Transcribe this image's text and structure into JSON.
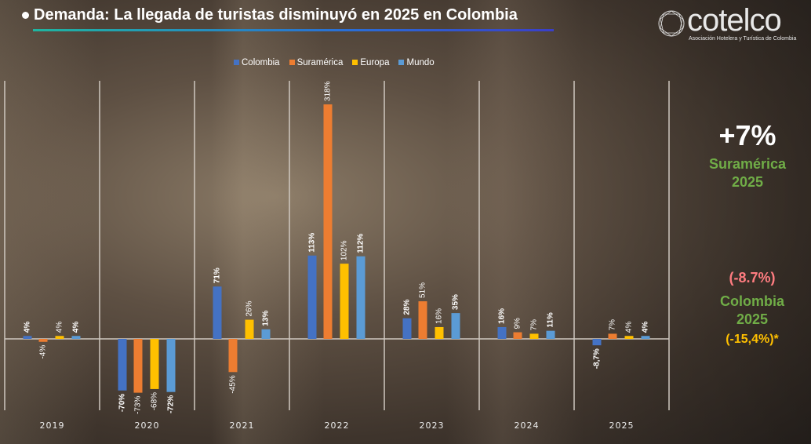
{
  "title": "Demanda: La llegada de turistas disminuyó en 2025 en Colombia",
  "logo": {
    "name": "cotelco",
    "tagline": "Asociación Hotelera y Turística de Colombia"
  },
  "chart_data": {
    "type": "bar",
    "categories": [
      "2019",
      "2020",
      "2021",
      "2022",
      "2023",
      "2024",
      "2025"
    ],
    "series": [
      {
        "name": "Colombia",
        "color": "#4472C4",
        "values": [
          4,
          -70,
          71,
          113,
          28,
          16,
          -8.7
        ],
        "labels": [
          "4%",
          "-70%",
          "71%",
          "113%",
          "28%",
          "16%",
          "-8,7%"
        ]
      },
      {
        "name": "Suramérica",
        "color": "#ED7D31",
        "values": [
          -4,
          -73,
          -45,
          318,
          51,
          9,
          7
        ],
        "labels": [
          "-4%",
          "-73%",
          "-45%",
          "318%",
          "51%",
          "9%",
          "7%"
        ]
      },
      {
        "name": "Europa",
        "color": "#FFC000",
        "values": [
          4,
          -68,
          26,
          102,
          16,
          7,
          4
        ],
        "labels": [
          "4%",
          "-68%",
          "26%",
          "102%",
          "16%",
          "7%",
          "4%"
        ]
      },
      {
        "name": "Mundo",
        "color": "#5B9BD5",
        "values": [
          4,
          -72,
          13,
          112,
          35,
          11,
          4
        ],
        "labels": [
          "4%",
          "-72%",
          "13%",
          "112%",
          "35%",
          "11%",
          "4%"
        ]
      }
    ],
    "legend": "top",
    "grid": false
  },
  "side": {
    "sa_value": "+7%",
    "sa_label": "Suramérica",
    "sa_year": "2025",
    "co_value": "(-8.7%)",
    "co_label": "Colombia",
    "co_year": "2025",
    "co_alt": "(-15,4%)*"
  }
}
